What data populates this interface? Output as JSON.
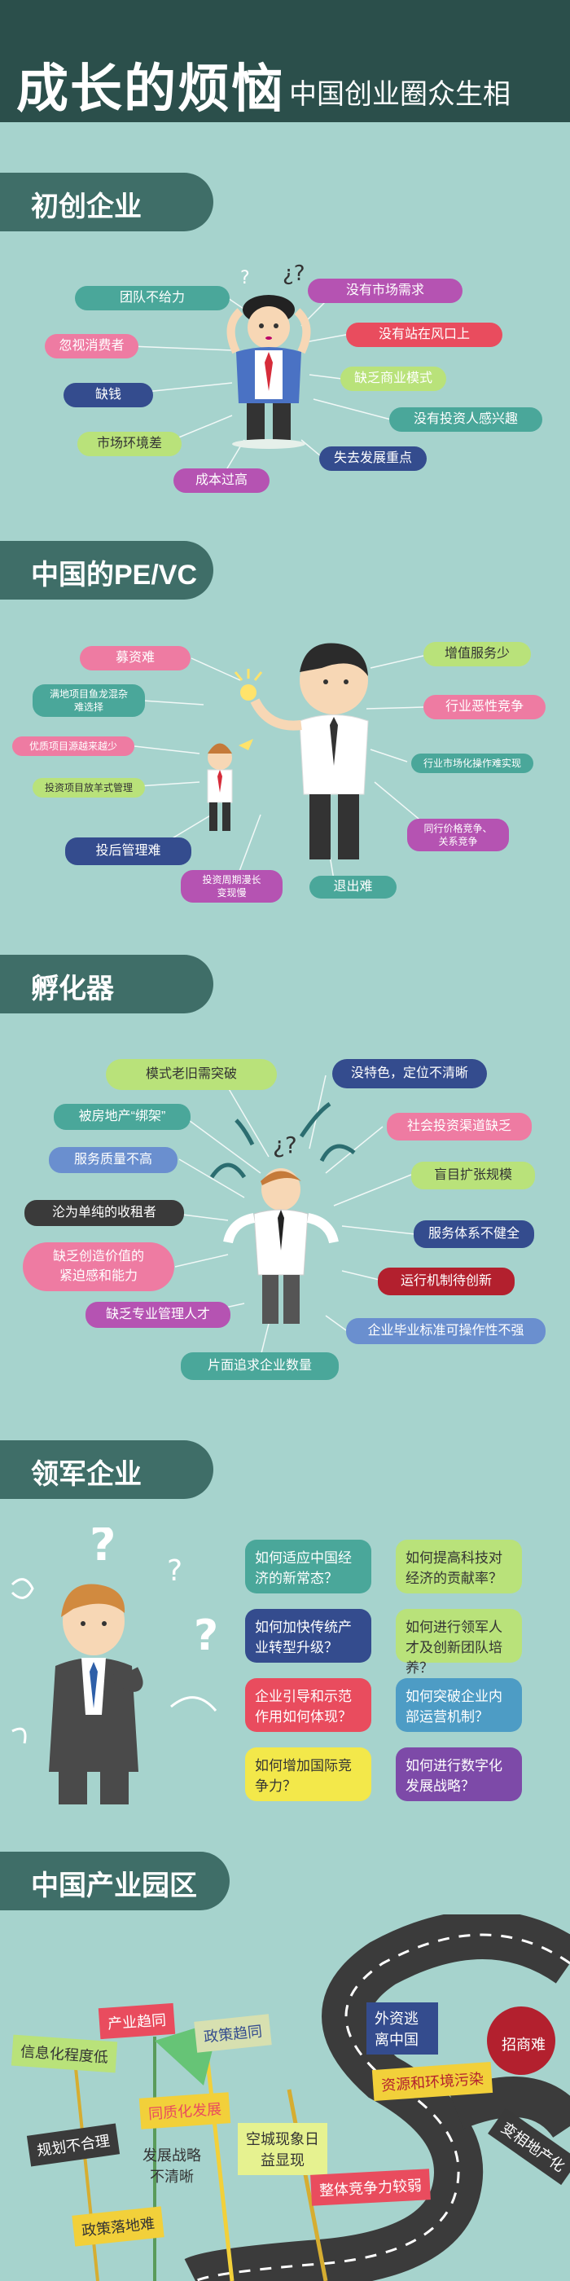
{
  "header": {
    "title": "成长的烦恼",
    "subtitle": "中国创业圈众生相"
  },
  "sections": {
    "s1": "初创企业",
    "s2": "中国的PE/VC",
    "s3": "孵化器",
    "s4": "领军企业",
    "s5": "中国产业园区"
  },
  "startup": [
    "团队不给力",
    "没有市场需求",
    "忽视消费者",
    "没有站在风口上",
    "缺钱",
    "缺乏商业模式",
    "没有投资人感兴趣",
    "市场环境差",
    "失去发展重点",
    "成本过高"
  ],
  "pevc": [
    "募资难",
    "增值服务少",
    "满地项目鱼龙混杂",
    "难选择",
    "行业恶性竞争",
    "优质项目源越来越少",
    "行业市场化操作难实现",
    "投资项目放羊式管理",
    "同行价格竞争、",
    "关系竞争",
    "投后管理难",
    "投资周期漫长",
    "变现慢",
    "退出难"
  ],
  "incubator": [
    "模式老旧需突破",
    "没特色，定位不清晰",
    "被房地产“绑架”",
    "社会投资渠道缺乏",
    "服务质量不高",
    "盲目扩张规模",
    "沦为单纯的收租者",
    "服务体系不健全",
    "缺乏创造价值的",
    "紧迫感和能力",
    "运行机制待创新",
    "缺乏专业管理人才",
    "企业毕业标准可操作性不强",
    "片面追求企业数量"
  ],
  "leaders": [
    "如何适应中国经济的新常态？",
    "如何提高科技对经济的贡献率？",
    "如何加快传统产业转型升级？",
    "如何进行领军人才及创新团队培养？",
    "企业引导和示范作用如何体现？",
    "如何突破企业内部运营机制？",
    "如何增加国际竞争力？",
    "如何进行数字化发展战略？"
  ],
  "parks": [
    "产业趋同",
    "信息化程度低",
    "政策趋同",
    "外资逃离中国",
    "招商难",
    "资源和环境污染",
    "同质化发展",
    "规划不合理",
    "发展战略不清晰",
    "空城现象日益显现",
    "变相地产化",
    "整体竞争力较弱",
    "政策落地难"
  ],
  "colors": {
    "teal": "#4aa79a",
    "pink": "#ee7ba2",
    "navy": "#344c8e",
    "lime": "#b9e27a",
    "purple": "#b553b2",
    "red": "#e94c5e",
    "green": "#68c28c",
    "dark": "#3a3a3a"
  }
}
